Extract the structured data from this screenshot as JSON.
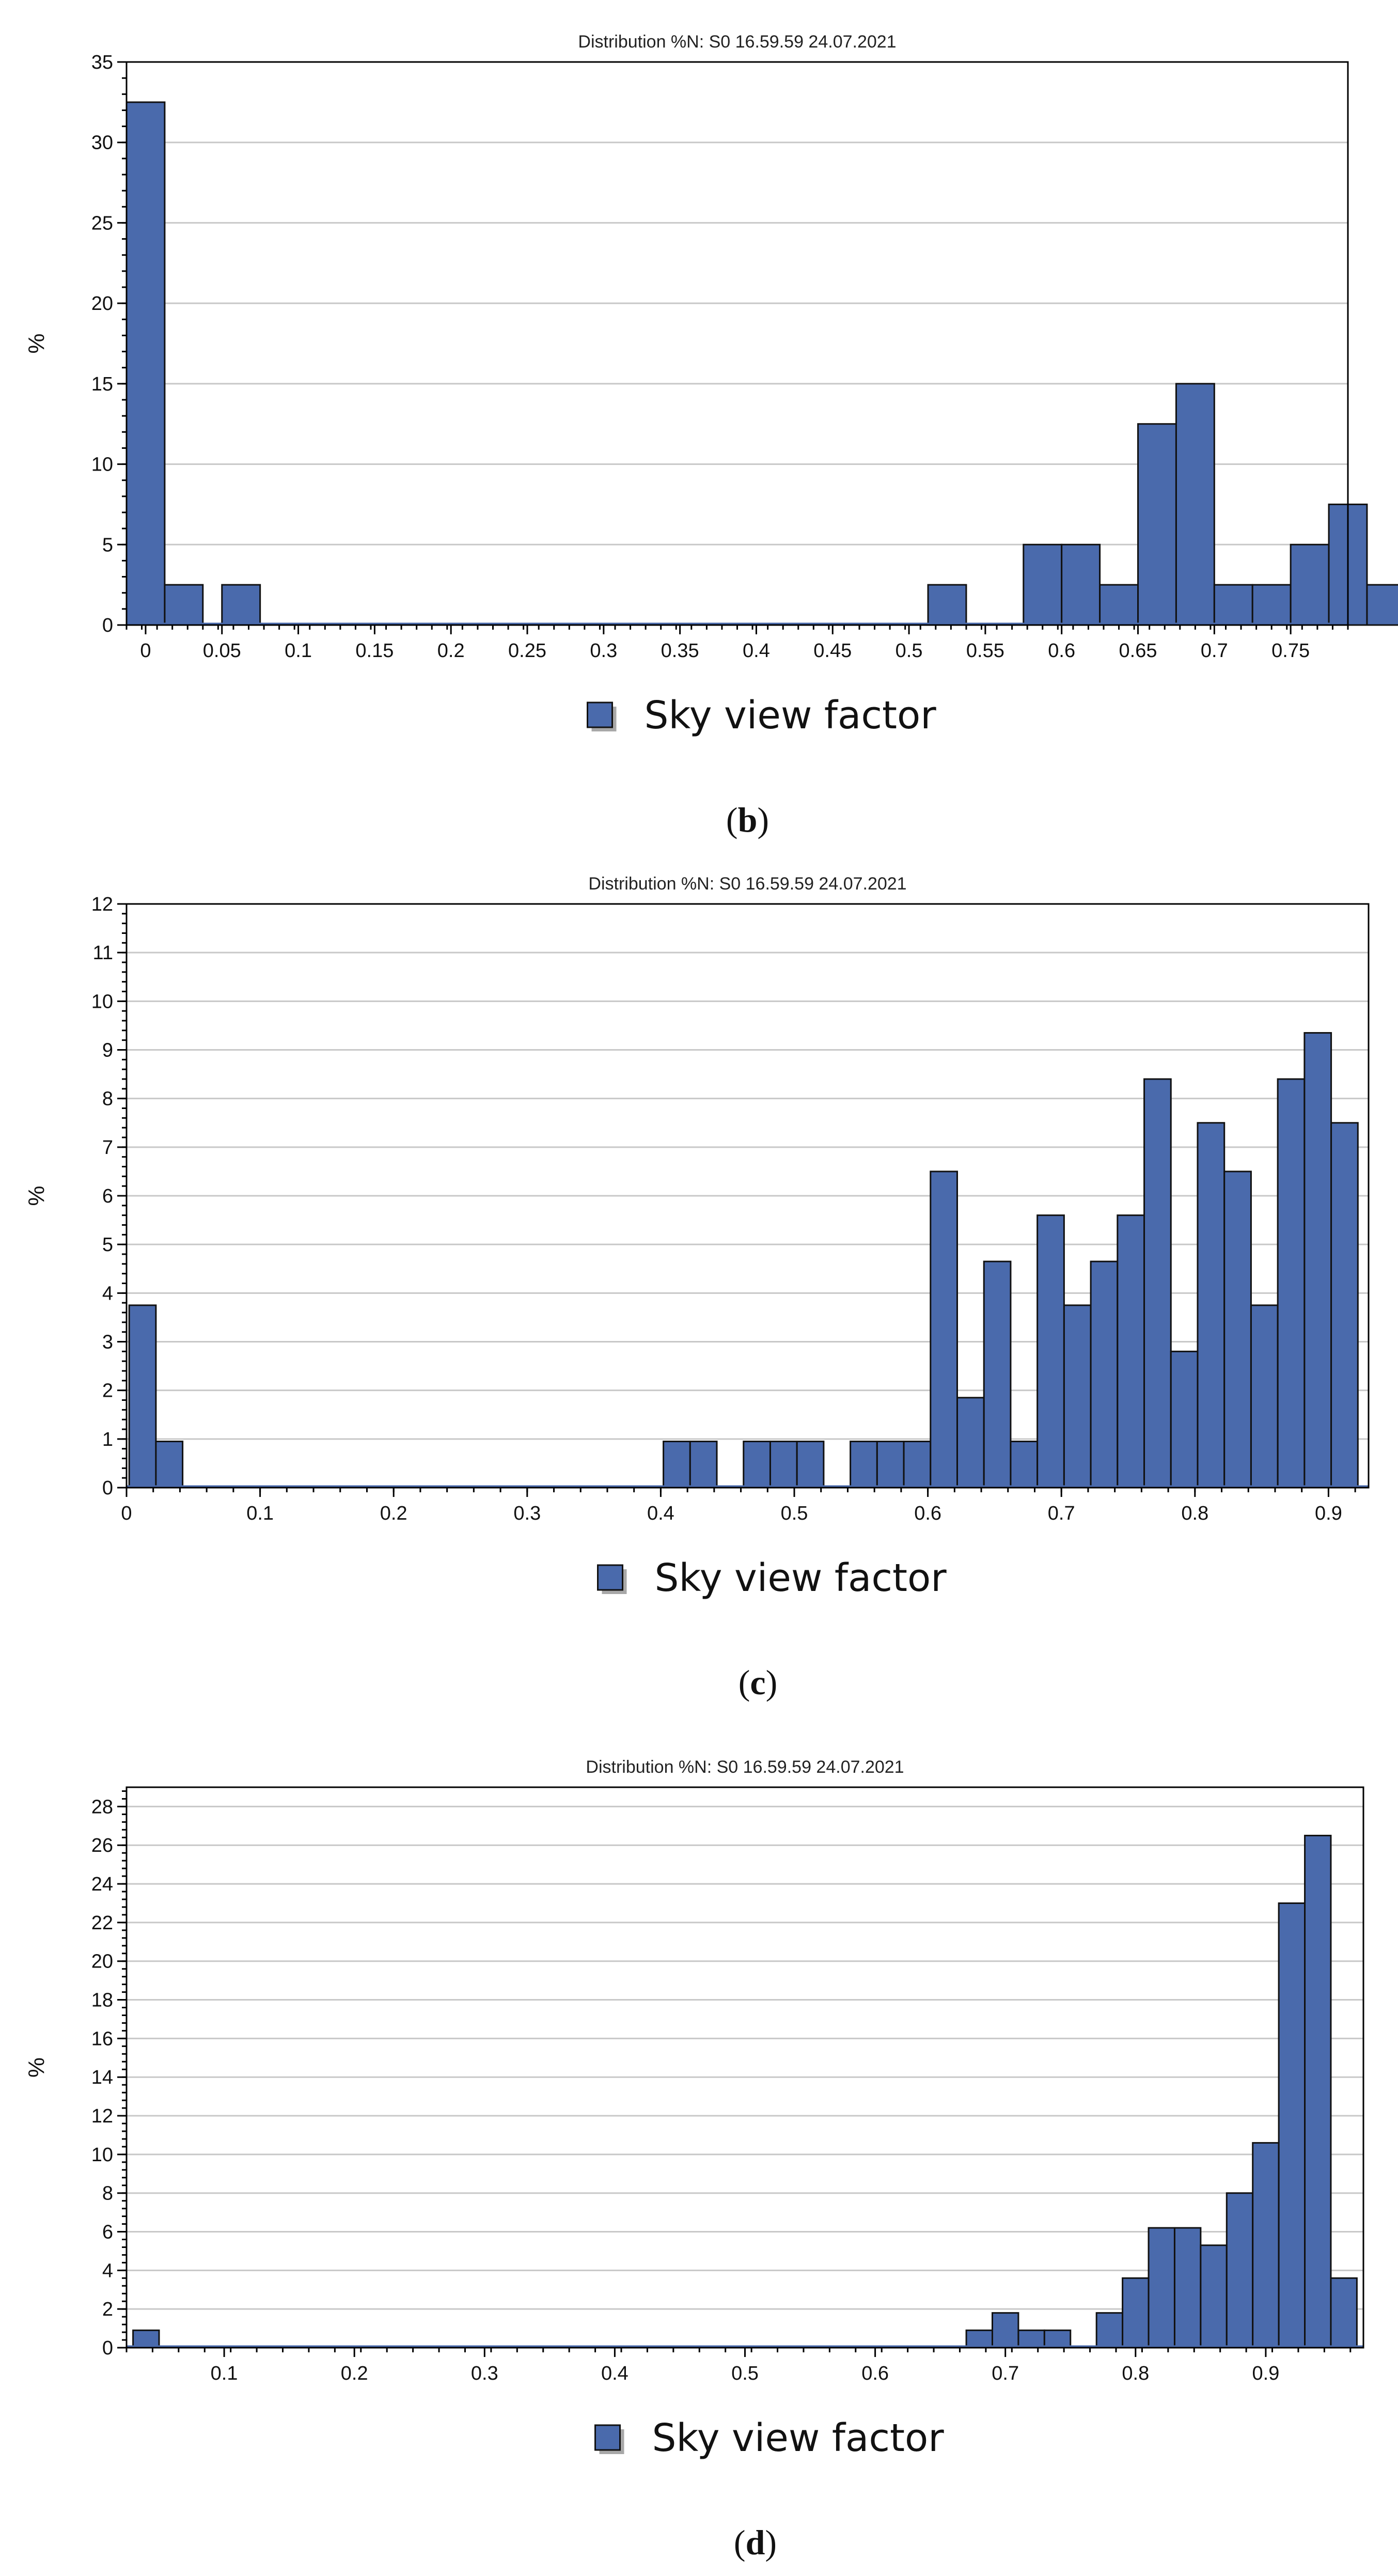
{
  "chart_data": [
    {
      "type": "bar",
      "title": "Distribution %N: S0 16.59.59 24.07.2021",
      "ylabel": "%",
      "legend": "Sky view factor",
      "caption_letter": "b",
      "color": "#4a6aac",
      "xlim": [
        -0.0125,
        0.7875
      ],
      "ylim": [
        0,
        35
      ],
      "yticks": [
        0,
        5,
        10,
        15,
        20,
        25,
        30,
        35
      ],
      "xticks": [
        "0",
        "0.05",
        "0.1",
        "0.15",
        "0.2",
        "0.25",
        "0.3",
        "0.35",
        "0.4",
        "0.45",
        "0.5",
        "0.55",
        "0.6",
        "0.65",
        "0.7",
        "0.75"
      ],
      "bin_width": 0.025,
      "bins": [
        {
          "x": 0.0,
          "value": 32.5
        },
        {
          "x": 0.025,
          "value": 2.5
        },
        {
          "x": 0.0625,
          "value": 2.5
        },
        {
          "x": 0.525,
          "value": 2.5
        },
        {
          "x": 0.5875,
          "value": 5
        },
        {
          "x": 0.6125,
          "value": 5
        },
        {
          "x": 0.6375,
          "value": 2.5
        },
        {
          "x": 0.6625,
          "value": 12.5
        },
        {
          "x": 0.6875,
          "value": 15
        },
        {
          "x": 0.7125,
          "value": 2.5
        },
        {
          "x": 0.7375,
          "value": 2.5
        },
        {
          "x": 0.7625,
          "value": 5
        },
        {
          "x": 0.7875,
          "value": 7.5
        },
        {
          "x": 0.8125,
          "value": 2.5
        }
      ]
    },
    {
      "type": "bar",
      "title": "Distribution %N: S0 16.59.59 24.07.2021",
      "ylabel": "%",
      "legend": "Sky view factor",
      "caption_letter": "c",
      "color": "#4a6aac",
      "xlim": [
        0,
        0.93
      ],
      "ylim": [
        0,
        12
      ],
      "yticks": [
        0,
        1,
        2,
        3,
        4,
        5,
        6,
        7,
        8,
        9,
        10,
        11,
        12
      ],
      "xticks": [
        "0",
        "0.1",
        "0.2",
        "0.3",
        "0.4",
        "0.5",
        "0.6",
        "0.7",
        "0.8",
        "0.9"
      ],
      "bin_width": 0.02,
      "bins": [
        {
          "x": 0.012,
          "value": 3.75
        },
        {
          "x": 0.032,
          "value": 0.95
        },
        {
          "x": 0.412,
          "value": 0.95
        },
        {
          "x": 0.432,
          "value": 0.95
        },
        {
          "x": 0.472,
          "value": 0.95
        },
        {
          "x": 0.492,
          "value": 0.95
        },
        {
          "x": 0.512,
          "value": 0.95
        },
        {
          "x": 0.552,
          "value": 0.95
        },
        {
          "x": 0.572,
          "value": 0.95
        },
        {
          "x": 0.592,
          "value": 0.95
        },
        {
          "x": 0.612,
          "value": 6.5
        },
        {
          "x": 0.632,
          "value": 1.85
        },
        {
          "x": 0.652,
          "value": 4.65
        },
        {
          "x": 0.672,
          "value": 0.95
        },
        {
          "x": 0.692,
          "value": 5.6
        },
        {
          "x": 0.712,
          "value": 3.75
        },
        {
          "x": 0.732,
          "value": 4.65
        },
        {
          "x": 0.752,
          "value": 5.6
        },
        {
          "x": 0.772,
          "value": 8.4
        },
        {
          "x": 0.792,
          "value": 2.8
        },
        {
          "x": 0.812,
          "value": 7.5
        },
        {
          "x": 0.832,
          "value": 6.5
        },
        {
          "x": 0.852,
          "value": 3.75
        },
        {
          "x": 0.872,
          "value": 8.4
        },
        {
          "x": 0.892,
          "value": 9.35
        },
        {
          "x": 0.912,
          "value": 7.5
        }
      ]
    },
    {
      "type": "bar",
      "title": "Distribution %N: S0 16.59.59 24.07.2021",
      "ylabel": "%",
      "legend": "Sky view factor",
      "caption_letter": "d",
      "color": "#4a6aac",
      "xlim": [
        0.025,
        0.975
      ],
      "ylim": [
        0,
        29
      ],
      "yticks": [
        0,
        2,
        4,
        6,
        8,
        10,
        12,
        14,
        16,
        18,
        20,
        22,
        24,
        26,
        28
      ],
      "xticks": [
        "0.1",
        "0.2",
        "0.3",
        "0.4",
        "0.5",
        "0.6",
        "0.7",
        "0.8",
        "0.9"
      ],
      "bin_width": 0.02,
      "bins": [
        {
          "x": 0.04,
          "value": 0.9
        },
        {
          "x": 0.68,
          "value": 0.9
        },
        {
          "x": 0.7,
          "value": 1.8
        },
        {
          "x": 0.72,
          "value": 0.9
        },
        {
          "x": 0.74,
          "value": 0.9
        },
        {
          "x": 0.78,
          "value": 1.8
        },
        {
          "x": 0.8,
          "value": 3.6
        },
        {
          "x": 0.82,
          "value": 6.2
        },
        {
          "x": 0.84,
          "value": 6.2
        },
        {
          "x": 0.86,
          "value": 5.3
        },
        {
          "x": 0.88,
          "value": 8.0
        },
        {
          "x": 0.9,
          "value": 10.6
        },
        {
          "x": 0.92,
          "value": 23.0
        },
        {
          "x": 0.94,
          "value": 26.5
        },
        {
          "x": 0.96,
          "value": 3.6
        }
      ]
    }
  ]
}
